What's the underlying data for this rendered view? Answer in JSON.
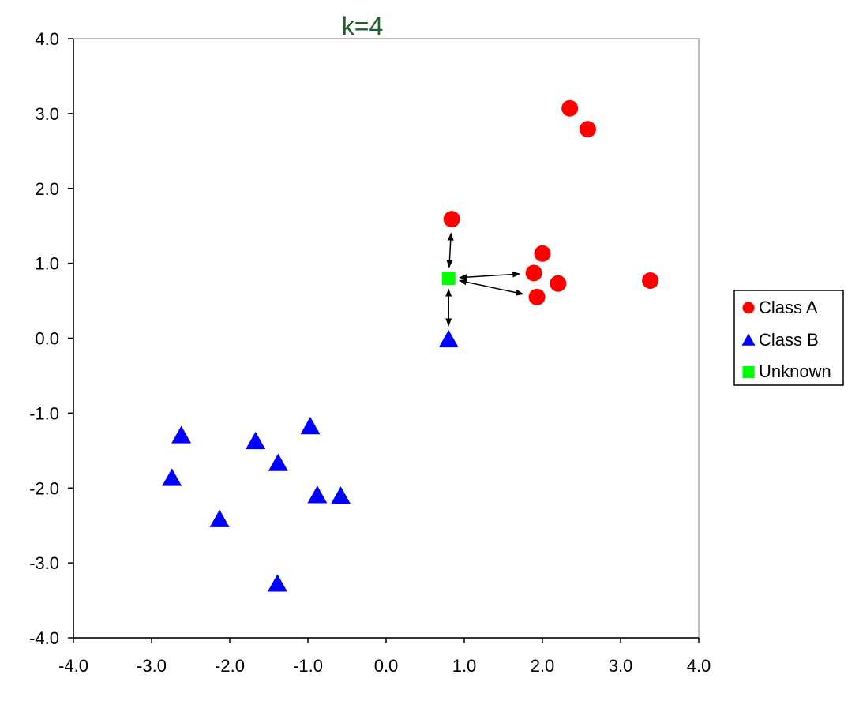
{
  "chart_data": {
    "type": "scatter",
    "title": "k=4",
    "xlim": [
      -4.0,
      4.0
    ],
    "ylim": [
      -4.0,
      4.0
    ],
    "x_ticks": [
      "-4.0",
      "-3.0",
      "-2.0",
      "-1.0",
      "0.0",
      "1.0",
      "2.0",
      "3.0",
      "4.0"
    ],
    "y_ticks": [
      "4.0",
      "3.0",
      "2.0",
      "1.0",
      "0.0",
      "-1.0",
      "-2.0",
      "-3.0",
      "-4.0"
    ],
    "grid": false,
    "legend_position": "right",
    "series": [
      {
        "name": "Class A",
        "marker": "circle",
        "color": "#ff0000",
        "points": [
          [
            2.35,
            3.07
          ],
          [
            2.58,
            2.79
          ],
          [
            0.84,
            1.59
          ],
          [
            2.0,
            1.13
          ],
          [
            1.89,
            0.87
          ],
          [
            2.2,
            0.73
          ],
          [
            1.93,
            0.55
          ],
          [
            3.38,
            0.77
          ]
        ]
      },
      {
        "name": "Class B",
        "marker": "triangle",
        "color": "#0000ff",
        "points": [
          [
            0.8,
            -0.02
          ],
          [
            -2.62,
            -1.3
          ],
          [
            -2.74,
            -1.87
          ],
          [
            -1.67,
            -1.38
          ],
          [
            -1.38,
            -1.67
          ],
          [
            -0.97,
            -1.18
          ],
          [
            -0.88,
            -2.1
          ],
          [
            -0.58,
            -2.11
          ],
          [
            -2.13,
            -2.42
          ],
          [
            -1.39,
            -3.28
          ]
        ]
      },
      {
        "name": "Unknown",
        "marker": "square",
        "color": "#00ff00",
        "points": [
          [
            0.8,
            0.8
          ]
        ]
      }
    ],
    "annotations": {
      "type": "double-arrows",
      "description_from": [
        0.8,
        0.8
      ],
      "neighbors": [
        [
          0.84,
          1.59
        ],
        [
          1.89,
          0.87
        ],
        [
          1.93,
          0.55
        ],
        [
          0.8,
          -0.02
        ]
      ]
    }
  }
}
